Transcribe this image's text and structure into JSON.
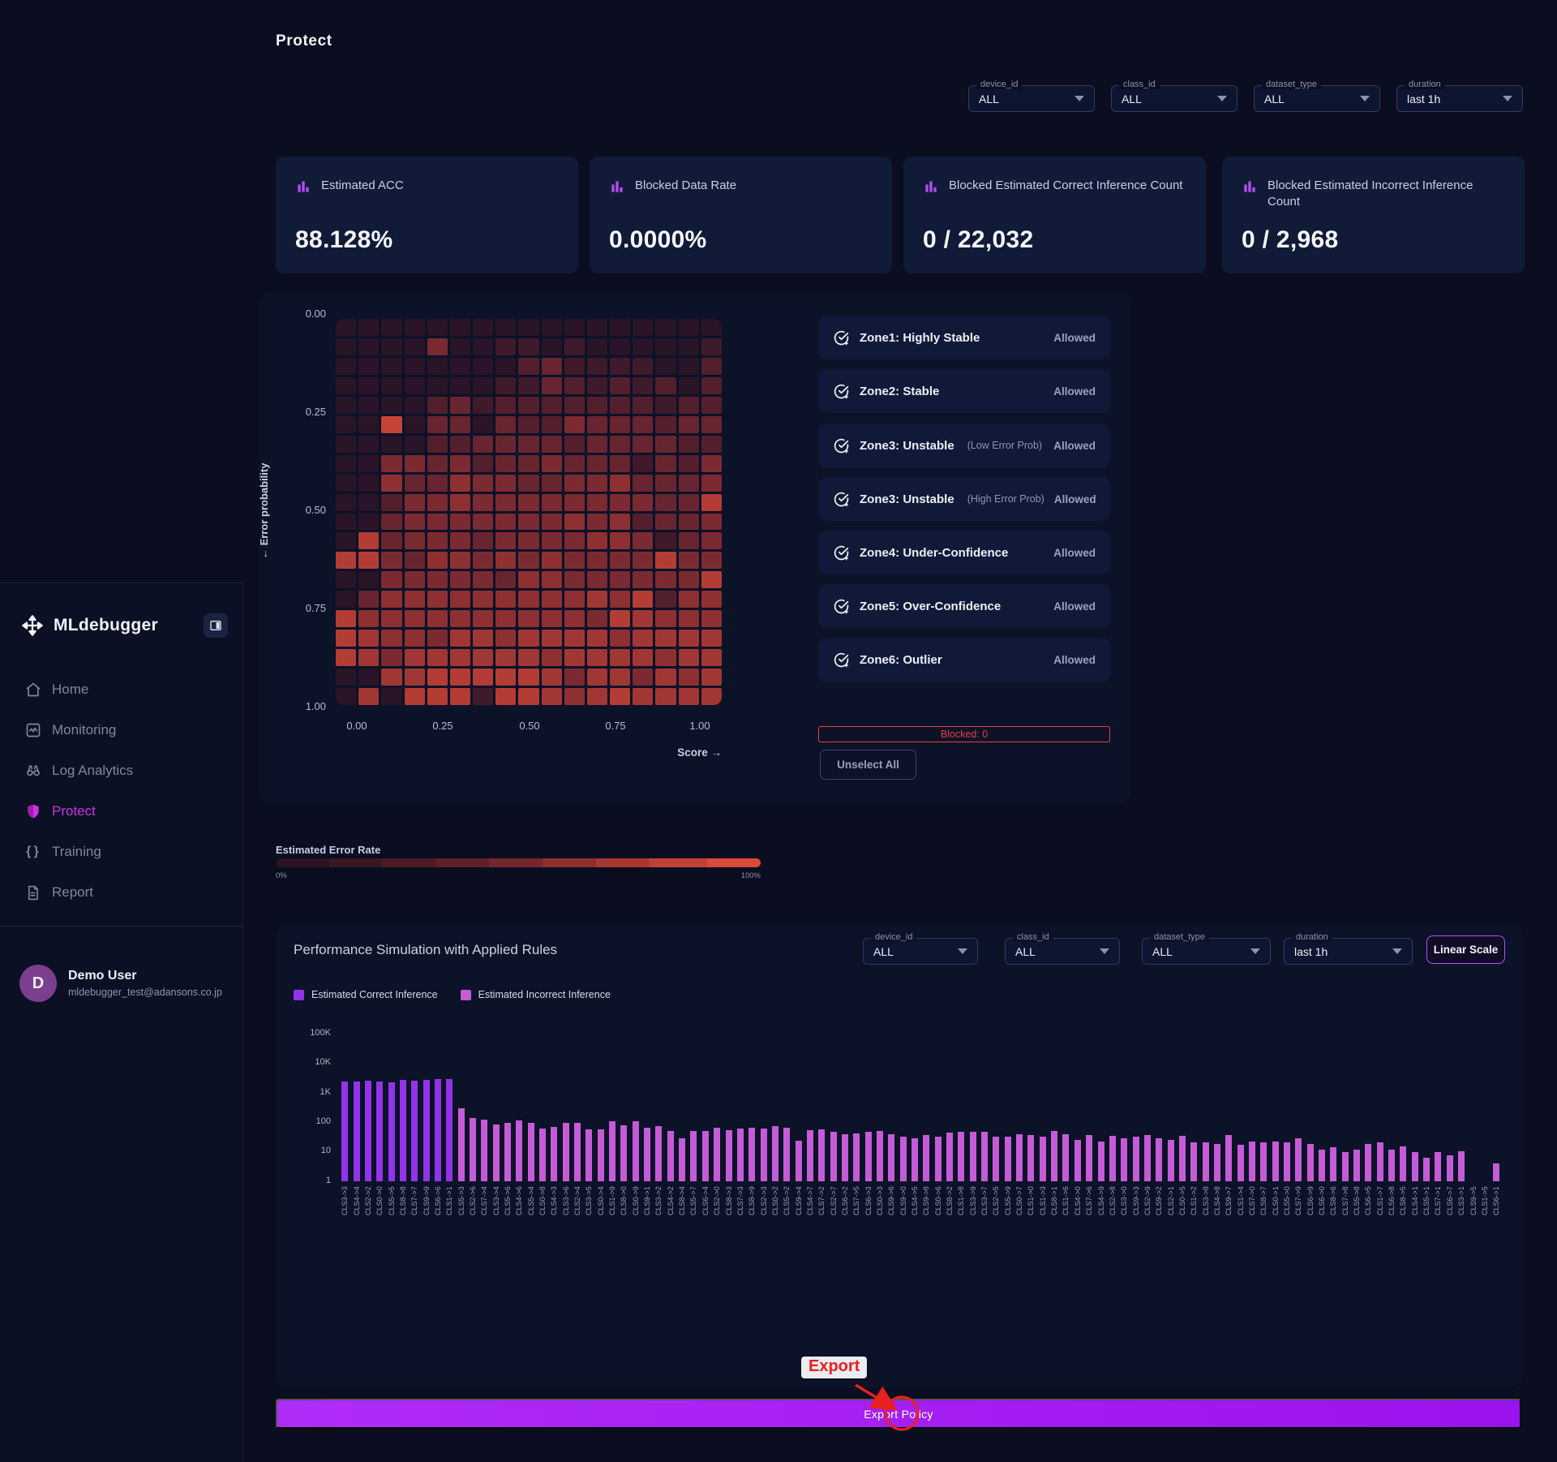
{
  "page_title": "Protect",
  "sidebar": {
    "brand": "MLdebugger",
    "items": [
      {
        "label": "Home",
        "icon": "home-icon",
        "active": false
      },
      {
        "label": "Monitoring",
        "icon": "monitoring-icon",
        "active": false
      },
      {
        "label": "Log Analytics",
        "icon": "binoculars-icon",
        "active": false
      },
      {
        "label": "Protect",
        "icon": "shield-icon",
        "active": true
      },
      {
        "label": "Training",
        "icon": "braces-icon",
        "active": false
      },
      {
        "label": "Report",
        "icon": "report-icon",
        "active": false
      }
    ],
    "user": {
      "initial": "D",
      "name": "Demo User",
      "email": "mldebugger_test@adansons.co.jp"
    }
  },
  "filters_top": [
    {
      "label": "device_id",
      "value": "ALL"
    },
    {
      "label": "class_id",
      "value": "ALL"
    },
    {
      "label": "dataset_type",
      "value": "ALL"
    },
    {
      "label": "duration",
      "value": "last 1h"
    }
  ],
  "stat_cards": [
    {
      "title": "Estimated ACC",
      "value": "88.128%"
    },
    {
      "title": "Blocked Data Rate",
      "value": "0.0000%"
    },
    {
      "title": "Blocked Estimated Correct Inference Count",
      "value": "0 / 22,032"
    },
    {
      "title": "Blocked Estimated Incorrect Inference Count",
      "value": "0 / 2,968"
    }
  ],
  "zones": [
    {
      "name": "Zone1: Highly Stable",
      "qualifier": "",
      "status": "Allowed"
    },
    {
      "name": "Zone2: Stable",
      "qualifier": "",
      "status": "Allowed"
    },
    {
      "name": "Zone3: Unstable",
      "qualifier": "(Low Error Prob)",
      "status": "Allowed"
    },
    {
      "name": "Zone3: Unstable",
      "qualifier": "(High Error Prob)",
      "status": "Allowed"
    },
    {
      "name": "Zone4: Under-Confidence",
      "qualifier": "",
      "status": "Allowed"
    },
    {
      "name": "Zone5: Over-Confidence",
      "qualifier": "",
      "status": "Allowed"
    },
    {
      "name": "Zone6: Outlier",
      "qualifier": "",
      "status": "Allowed"
    }
  ],
  "blocked_bar": "Blocked: 0",
  "unselect_button": "Unselect All",
  "error_rate": {
    "title": "Estimated Error Rate",
    "min": "0%",
    "max": "100%"
  },
  "performance": {
    "title": "Performance Simulation with Applied Rules",
    "filters": [
      {
        "label": "device_id",
        "value": "ALL"
      },
      {
        "label": "class_id",
        "value": "ALL"
      },
      {
        "label": "dataset_type",
        "value": "ALL"
      },
      {
        "label": "duration",
        "value": "last 1h"
      }
    ],
    "scale_button": "Linear Scale",
    "legend": [
      {
        "label": "Estimated Correct Inference",
        "color": "#9333ea"
      },
      {
        "label": "Estimated Incorrect Inference",
        "color": "#c65bd8"
      }
    ]
  },
  "export_button": "Export Policy",
  "annotation": {
    "label": "Export",
    "color": "#e8201f"
  },
  "colors": {
    "accent_purple": "#a855f7",
    "active_nav": "#c935e0",
    "blocked_red": "#e0413d",
    "export_gradient_left": "#b02cf7",
    "export_gradient_right": "#9a12ee"
  },
  "chart_data": [
    {
      "type": "heatmap",
      "xlabel": "Score →",
      "ylabel": "← Error probability",
      "xticks": [
        "0.00",
        "0.25",
        "0.50",
        "0.75",
        "1.00"
      ],
      "yticks": [
        "0.00",
        "0.25",
        "0.50",
        "0.75",
        "1.00"
      ],
      "x_range": [
        0,
        1
      ],
      "y_range": [
        0,
        1
      ],
      "rows": 20,
      "cols": 17,
      "colormap": {
        "low": "#2a1427",
        "mid": "#7c2a31",
        "high": "#d84a38"
      },
      "values": [
        [
          1,
          1,
          1,
          1,
          1,
          1,
          1,
          1,
          1,
          1,
          1,
          1,
          1,
          1,
          1,
          1,
          1
        ],
        [
          1,
          1,
          1,
          1,
          5,
          1,
          1,
          2,
          2,
          1,
          2,
          1,
          1,
          1,
          1,
          1,
          2
        ],
        [
          1,
          1,
          1,
          1,
          1,
          1,
          1,
          1,
          3,
          4,
          2,
          2,
          2,
          2,
          1,
          1,
          3
        ],
        [
          1,
          1,
          1,
          1,
          1,
          1,
          1,
          2,
          2,
          4,
          3,
          2,
          3,
          2,
          3,
          1,
          3
        ],
        [
          1,
          1,
          1,
          1,
          3,
          4,
          2,
          3,
          3,
          3,
          3,
          3,
          3,
          3,
          2,
          3,
          3
        ],
        [
          1,
          1,
          9,
          1,
          4,
          4,
          1,
          4,
          3,
          3,
          5,
          4,
          4,
          4,
          3,
          4,
          4
        ],
        [
          1,
          1,
          1,
          1,
          3,
          3,
          4,
          4,
          4,
          4,
          3,
          4,
          4,
          4,
          4,
          3,
          3
        ],
        [
          1,
          1,
          5,
          5,
          4,
          5,
          3,
          4,
          4,
          5,
          4,
          4,
          4,
          2,
          4,
          3,
          5
        ],
        [
          1,
          1,
          6,
          4,
          4,
          6,
          5,
          5,
          4,
          4,
          5,
          5,
          6,
          4,
          4,
          4,
          5
        ],
        [
          1,
          1,
          3,
          5,
          5,
          6,
          5,
          5,
          5,
          5,
          5,
          5,
          5,
          5,
          4,
          4,
          8
        ],
        [
          1,
          1,
          4,
          5,
          5,
          5,
          5,
          5,
          5,
          5,
          6,
          5,
          6,
          3,
          4,
          4,
          5
        ],
        [
          1,
          8,
          4,
          5,
          5,
          5,
          4,
          5,
          5,
          5,
          5,
          6,
          6,
          5,
          2,
          4,
          5
        ],
        [
          8,
          8,
          5,
          4,
          6,
          6,
          5,
          6,
          5,
          6,
          5,
          5,
          5,
          5,
          8,
          5,
          5
        ],
        [
          1,
          1,
          5,
          5,
          5,
          5,
          5,
          4,
          6,
          6,
          5,
          5,
          5,
          5,
          5,
          5,
          8
        ],
        [
          1,
          4,
          6,
          6,
          6,
          6,
          6,
          6,
          6,
          6,
          6,
          7,
          6,
          8,
          3,
          6,
          6
        ],
        [
          8,
          6,
          6,
          6,
          6,
          6,
          6,
          6,
          6,
          6,
          6,
          5,
          8,
          7,
          6,
          6,
          6
        ],
        [
          8,
          7,
          6,
          6,
          5,
          7,
          7,
          6,
          7,
          7,
          7,
          7,
          6,
          7,
          7,
          7,
          7
        ],
        [
          8,
          7,
          5,
          7,
          7,
          7,
          7,
          7,
          7,
          6,
          7,
          7,
          7,
          7,
          6,
          7,
          7
        ],
        [
          1,
          1,
          7,
          7,
          8,
          8,
          8,
          8,
          8,
          7,
          5,
          7,
          7,
          5,
          7,
          6,
          7
        ],
        [
          1,
          7,
          1,
          8,
          8,
          8,
          2,
          8,
          8,
          7,
          6,
          7,
          8,
          7,
          7,
          7,
          7
        ]
      ]
    },
    {
      "type": "bar",
      "scale": "log",
      "ylim": [
        1,
        100000
      ],
      "yticks": [
        "100K",
        "10K",
        "1K",
        "100",
        "10",
        "1"
      ],
      "correct_count": 10,
      "series": [
        {
          "name": "Estimated Correct Inference",
          "color": "#9333ea"
        },
        {
          "name": "Estimated Incorrect Inference",
          "color": "#c65bd8"
        }
      ],
      "categories": [
        "CLS3->3",
        "CLS4->4",
        "CLS2->2",
        "CLS0->0",
        "CLS5->5",
        "CLS8->8",
        "CLS7->7",
        "CLS9->9",
        "CLS6->6",
        "CLS1->1",
        "CLS5->3",
        "CLS2->6",
        "CLS7->4",
        "CLS3->4",
        "CLS5->6",
        "CLS4->6",
        "CLS5->4",
        "CLS0->8",
        "CLS4->3",
        "CLS3->6",
        "CLS2->4",
        "CLS3->5",
        "CLS0->4",
        "CLS1->9",
        "CLS8->0",
        "CLS0->9",
        "CLS9->1",
        "CLS3->2",
        "CLS4->2",
        "CLS8->4",
        "CLS5->7",
        "CLS6->4",
        "CLS2->0",
        "CLS8->3",
        "CLS7->3",
        "CLS8->9",
        "CLS2->3",
        "CLS0->2",
        "CLS5->2",
        "CLS9->4",
        "CLS4->7",
        "CLS7->2",
        "CLS2->7",
        "CLS6->2",
        "CLS7->5",
        "CLS6->3",
        "CLS0->3",
        "CLS9->6",
        "CLS9->0",
        "CLS4->5",
        "CLS9->8",
        "CLS0->6",
        "CLS8->2",
        "CLS1->8",
        "CLS3->9",
        "CLS3->7",
        "CLS2->5",
        "CLS5->9",
        "CLS0->7",
        "CLS1->0",
        "CLS1->3",
        "CLS8->1",
        "CLS1->6",
        "CLS4->0",
        "CLS7->6",
        "CLS4->9",
        "CLS2->8",
        "CLS3->0",
        "CLS9->3",
        "CLS2->9",
        "CLS9->2",
        "CLS2->1",
        "CLS0->5",
        "CLS1->2",
        "CLS3->8",
        "CLS4->8",
        "CLS9->7",
        "CLS1->4",
        "CLS7->0",
        "CLS8->7",
        "CLS0->1",
        "CLS5->0",
        "CLS7->9",
        "CLS6->9",
        "CLS6->0",
        "CLS8->6",
        "CLS7->8",
        "CLS5->8",
        "CLS6->5",
        "CLS1->7",
        "CLS6->8",
        "CLS8->5",
        "CLS4->1",
        "CLS5->1",
        "CLS7->1",
        "CLS6->7",
        "CLS3->1",
        "CLS9->5",
        "CLS1->5",
        "CLS6->1"
      ],
      "values": [
        1900,
        2000,
        2100,
        2000,
        1800,
        2200,
        2100,
        2200,
        2400,
        2300,
        250,
        120,
        105,
        75,
        85,
        100,
        82,
        55,
        62,
        85,
        85,
        52,
        52,
        95,
        70,
        95,
        58,
        65,
        45,
        27,
        46,
        45,
        60,
        50,
        55,
        58,
        55,
        65,
        58,
        22,
        48,
        52,
        42,
        36,
        37,
        44,
        47,
        36,
        29,
        26,
        34,
        29,
        40,
        43,
        42,
        42,
        29,
        30,
        36,
        34,
        29,
        46,
        36,
        23,
        34,
        21,
        31,
        26,
        29,
        34,
        27,
        23,
        31,
        19,
        19,
        17,
        33,
        16,
        21,
        19,
        21,
        19,
        26,
        17,
        11,
        13,
        9,
        11,
        17,
        19,
        11,
        14,
        9,
        6,
        9,
        7,
        10,
        1,
        1,
        4
      ]
    }
  ]
}
